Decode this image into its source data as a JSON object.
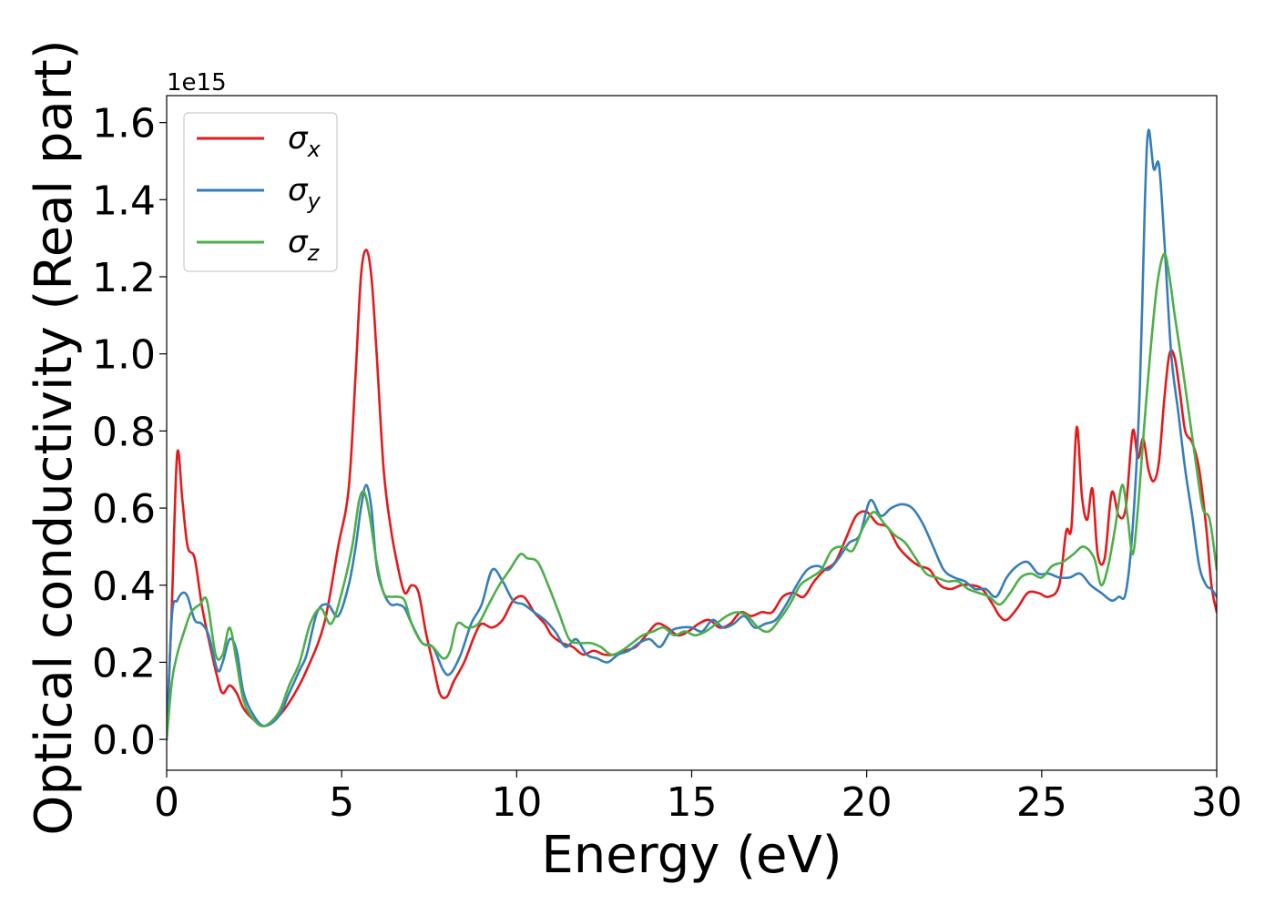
{
  "chart_data": {
    "type": "line",
    "title": "",
    "xlabel": "Energy (eV)",
    "ylabel": "Optical conductivity (Real part)",
    "y_offset_label": "1e15",
    "xlim": [
      0,
      30
    ],
    "ylim": [
      -0.08,
      1.67
    ],
    "x_ticks": [
      0,
      5,
      10,
      15,
      20,
      25,
      30
    ],
    "x_tick_labels": [
      "0",
      "5",
      "10",
      "15",
      "20",
      "25",
      "30"
    ],
    "y_ticks": [
      0.0,
      0.2,
      0.4,
      0.6,
      0.8,
      1.0,
      1.2,
      1.4,
      1.6
    ],
    "y_tick_labels": [
      "0.0",
      "0.2",
      "0.4",
      "0.6",
      "0.8",
      "1.0",
      "1.2",
      "1.4",
      "1.6"
    ],
    "grid": false,
    "legend_position": "top-left",
    "series": [
      {
        "name": "σx",
        "legend_base": "σ",
        "legend_sub": "x",
        "color": "#e41a1c",
        "x": [
          0,
          0.15,
          0.3,
          0.45,
          0.6,
          0.8,
          1.0,
          1.2,
          1.45,
          1.6,
          1.8,
          2.0,
          2.2,
          2.5,
          2.8,
          3.2,
          3.6,
          4.0,
          4.5,
          4.9,
          5.2,
          5.4,
          5.55,
          5.7,
          5.85,
          6.0,
          6.2,
          6.4,
          6.6,
          6.8,
          7.0,
          7.2,
          7.4,
          7.6,
          7.8,
          8.0,
          8.2,
          8.5,
          8.8,
          9.0,
          9.3,
          9.6,
          9.9,
          10.2,
          10.5,
          10.8,
          11.0,
          11.3,
          11.6,
          11.9,
          12.2,
          12.5,
          12.8,
          13.1,
          13.4,
          13.7,
          14.0,
          14.3,
          14.6,
          14.9,
          15.2,
          15.5,
          15.8,
          16.1,
          16.4,
          16.7,
          17.0,
          17.3,
          17.6,
          17.9,
          18.2,
          18.5,
          18.8,
          19.1,
          19.4,
          19.7,
          20.0,
          20.3,
          20.6,
          20.9,
          21.2,
          21.5,
          21.8,
          22.1,
          22.4,
          22.7,
          23.0,
          23.3,
          23.6,
          23.8,
          24.0,
          24.3,
          24.6,
          24.9,
          25.2,
          25.5,
          25.7,
          25.85,
          26.0,
          26.15,
          26.3,
          26.45,
          26.6,
          26.8,
          27.0,
          27.2,
          27.4,
          27.6,
          27.75,
          27.9,
          28.05,
          28.2,
          28.35,
          28.5,
          28.65,
          28.8,
          28.95,
          29.1,
          29.3,
          29.5,
          29.7,
          29.85,
          30.0
        ],
        "values": [
          0.0,
          0.35,
          0.74,
          0.62,
          0.5,
          0.47,
          0.35,
          0.26,
          0.16,
          0.12,
          0.14,
          0.12,
          0.08,
          0.05,
          0.035,
          0.06,
          0.11,
          0.18,
          0.3,
          0.5,
          0.65,
          0.95,
          1.2,
          1.27,
          1.2,
          1.0,
          0.7,
          0.55,
          0.45,
          0.38,
          0.4,
          0.38,
          0.28,
          0.2,
          0.12,
          0.11,
          0.15,
          0.2,
          0.27,
          0.3,
          0.29,
          0.31,
          0.36,
          0.37,
          0.33,
          0.3,
          0.27,
          0.25,
          0.24,
          0.22,
          0.23,
          0.22,
          0.22,
          0.23,
          0.24,
          0.27,
          0.3,
          0.29,
          0.27,
          0.28,
          0.3,
          0.31,
          0.29,
          0.3,
          0.33,
          0.32,
          0.33,
          0.33,
          0.37,
          0.38,
          0.37,
          0.41,
          0.44,
          0.46,
          0.52,
          0.58,
          0.59,
          0.56,
          0.55,
          0.5,
          0.47,
          0.45,
          0.44,
          0.4,
          0.39,
          0.4,
          0.4,
          0.39,
          0.35,
          0.32,
          0.31,
          0.34,
          0.38,
          0.38,
          0.37,
          0.4,
          0.54,
          0.55,
          0.81,
          0.63,
          0.57,
          0.65,
          0.48,
          0.47,
          0.64,
          0.58,
          0.6,
          0.8,
          0.73,
          0.78,
          0.7,
          0.67,
          0.72,
          0.88,
          1.0,
          0.99,
          0.9,
          0.8,
          0.77,
          0.7,
          0.55,
          0.4,
          0.33
        ]
      },
      {
        "name": "σy",
        "legend_base": "σ",
        "legend_sub": "y",
        "color": "#377eb8",
        "x": [
          0,
          0.15,
          0.3,
          0.45,
          0.6,
          0.8,
          1.0,
          1.2,
          1.45,
          1.6,
          1.8,
          2.0,
          2.2,
          2.5,
          2.8,
          3.2,
          3.5,
          3.8,
          4.0,
          4.3,
          4.6,
          4.9,
          5.2,
          5.4,
          5.55,
          5.7,
          5.85,
          6.0,
          6.2,
          6.4,
          6.6,
          6.8,
          7.0,
          7.3,
          7.6,
          7.9,
          8.1,
          8.4,
          8.7,
          9.0,
          9.3,
          9.6,
          9.9,
          10.2,
          10.5,
          10.8,
          11.1,
          11.4,
          11.7,
          12.0,
          12.3,
          12.6,
          12.9,
          13.2,
          13.5,
          13.8,
          14.1,
          14.4,
          14.7,
          15.0,
          15.3,
          15.6,
          15.9,
          16.2,
          16.5,
          16.8,
          17.1,
          17.4,
          17.7,
          18.0,
          18.3,
          18.6,
          18.9,
          19.2,
          19.5,
          19.8,
          20.1,
          20.4,
          20.7,
          21.0,
          21.3,
          21.6,
          21.9,
          22.2,
          22.5,
          22.8,
          23.1,
          23.4,
          23.7,
          24.0,
          24.3,
          24.6,
          24.9,
          25.2,
          25.5,
          25.8,
          26.1,
          26.4,
          26.7,
          27.0,
          27.2,
          27.4,
          27.6,
          27.8,
          27.95,
          28.05,
          28.2,
          28.35,
          28.5,
          28.7,
          28.9,
          29.1,
          29.3,
          29.5,
          29.7,
          29.85,
          30.0
        ],
        "values": [
          0.0,
          0.32,
          0.36,
          0.38,
          0.37,
          0.31,
          0.3,
          0.27,
          0.18,
          0.2,
          0.26,
          0.23,
          0.12,
          0.06,
          0.035,
          0.06,
          0.12,
          0.18,
          0.22,
          0.33,
          0.35,
          0.32,
          0.4,
          0.5,
          0.6,
          0.66,
          0.6,
          0.45,
          0.38,
          0.35,
          0.35,
          0.34,
          0.3,
          0.25,
          0.24,
          0.18,
          0.17,
          0.22,
          0.3,
          0.35,
          0.44,
          0.41,
          0.36,
          0.35,
          0.33,
          0.31,
          0.28,
          0.24,
          0.26,
          0.22,
          0.21,
          0.2,
          0.22,
          0.23,
          0.25,
          0.26,
          0.24,
          0.28,
          0.29,
          0.29,
          0.28,
          0.31,
          0.29,
          0.3,
          0.32,
          0.29,
          0.3,
          0.31,
          0.35,
          0.4,
          0.44,
          0.45,
          0.44,
          0.47,
          0.51,
          0.53,
          0.62,
          0.58,
          0.6,
          0.61,
          0.6,
          0.56,
          0.5,
          0.44,
          0.42,
          0.41,
          0.39,
          0.39,
          0.37,
          0.42,
          0.45,
          0.46,
          0.43,
          0.43,
          0.42,
          0.42,
          0.43,
          0.4,
          0.38,
          0.36,
          0.37,
          0.38,
          0.55,
          0.9,
          1.4,
          1.58,
          1.48,
          1.49,
          1.3,
          1.0,
          0.85,
          0.7,
          0.58,
          0.45,
          0.4,
          0.39,
          0.37
        ]
      },
      {
        "name": "σz",
        "legend_base": "σ",
        "legend_sub": "z",
        "color": "#4daf4a",
        "x": [
          0,
          0.15,
          0.3,
          0.5,
          0.7,
          0.95,
          1.15,
          1.4,
          1.6,
          1.8,
          2.0,
          2.2,
          2.5,
          2.8,
          3.2,
          3.5,
          3.8,
          4.1,
          4.4,
          4.7,
          5.0,
          5.3,
          5.5,
          5.65,
          5.8,
          6.0,
          6.2,
          6.4,
          6.6,
          6.8,
          7.0,
          7.3,
          7.6,
          7.9,
          8.1,
          8.3,
          8.6,
          8.9,
          9.2,
          9.5,
          9.8,
          10.1,
          10.3,
          10.6,
          10.9,
          11.2,
          11.5,
          11.8,
          12.1,
          12.4,
          12.7,
          13.0,
          13.3,
          13.6,
          13.9,
          14.2,
          14.5,
          14.8,
          15.1,
          15.4,
          15.7,
          16.0,
          16.3,
          16.6,
          16.9,
          17.2,
          17.5,
          17.8,
          18.1,
          18.4,
          18.7,
          19.0,
          19.3,
          19.6,
          19.9,
          20.2,
          20.5,
          20.8,
          21.1,
          21.4,
          21.7,
          22.0,
          22.3,
          22.6,
          22.9,
          23.2,
          23.5,
          23.8,
          24.1,
          24.4,
          24.7,
          25.0,
          25.3,
          25.6,
          25.9,
          26.2,
          26.5,
          26.7,
          26.9,
          27.1,
          27.3,
          27.45,
          27.6,
          27.75,
          27.9,
          28.1,
          28.3,
          28.5,
          28.65,
          28.8,
          29.0,
          29.2,
          29.4,
          29.6,
          29.8,
          30.0
        ],
        "values": [
          0.0,
          0.15,
          0.22,
          0.28,
          0.33,
          0.35,
          0.36,
          0.22,
          0.22,
          0.29,
          0.2,
          0.1,
          0.05,
          0.035,
          0.07,
          0.14,
          0.2,
          0.3,
          0.34,
          0.3,
          0.38,
          0.5,
          0.62,
          0.64,
          0.58,
          0.46,
          0.38,
          0.37,
          0.37,
          0.36,
          0.3,
          0.25,
          0.24,
          0.21,
          0.23,
          0.3,
          0.29,
          0.3,
          0.35,
          0.4,
          0.44,
          0.48,
          0.47,
          0.46,
          0.4,
          0.33,
          0.26,
          0.25,
          0.25,
          0.24,
          0.22,
          0.23,
          0.25,
          0.27,
          0.28,
          0.29,
          0.27,
          0.28,
          0.27,
          0.28,
          0.3,
          0.32,
          0.33,
          0.32,
          0.29,
          0.28,
          0.31,
          0.35,
          0.4,
          0.42,
          0.44,
          0.49,
          0.5,
          0.49,
          0.55,
          0.59,
          0.56,
          0.53,
          0.51,
          0.47,
          0.43,
          0.42,
          0.41,
          0.41,
          0.39,
          0.38,
          0.37,
          0.35,
          0.38,
          0.42,
          0.43,
          0.42,
          0.45,
          0.46,
          0.48,
          0.5,
          0.47,
          0.4,
          0.45,
          0.55,
          0.66,
          0.58,
          0.48,
          0.6,
          0.78,
          1.0,
          1.18,
          1.26,
          1.2,
          1.1,
          0.98,
          0.85,
          0.72,
          0.6,
          0.57,
          0.44
        ]
      }
    ]
  }
}
